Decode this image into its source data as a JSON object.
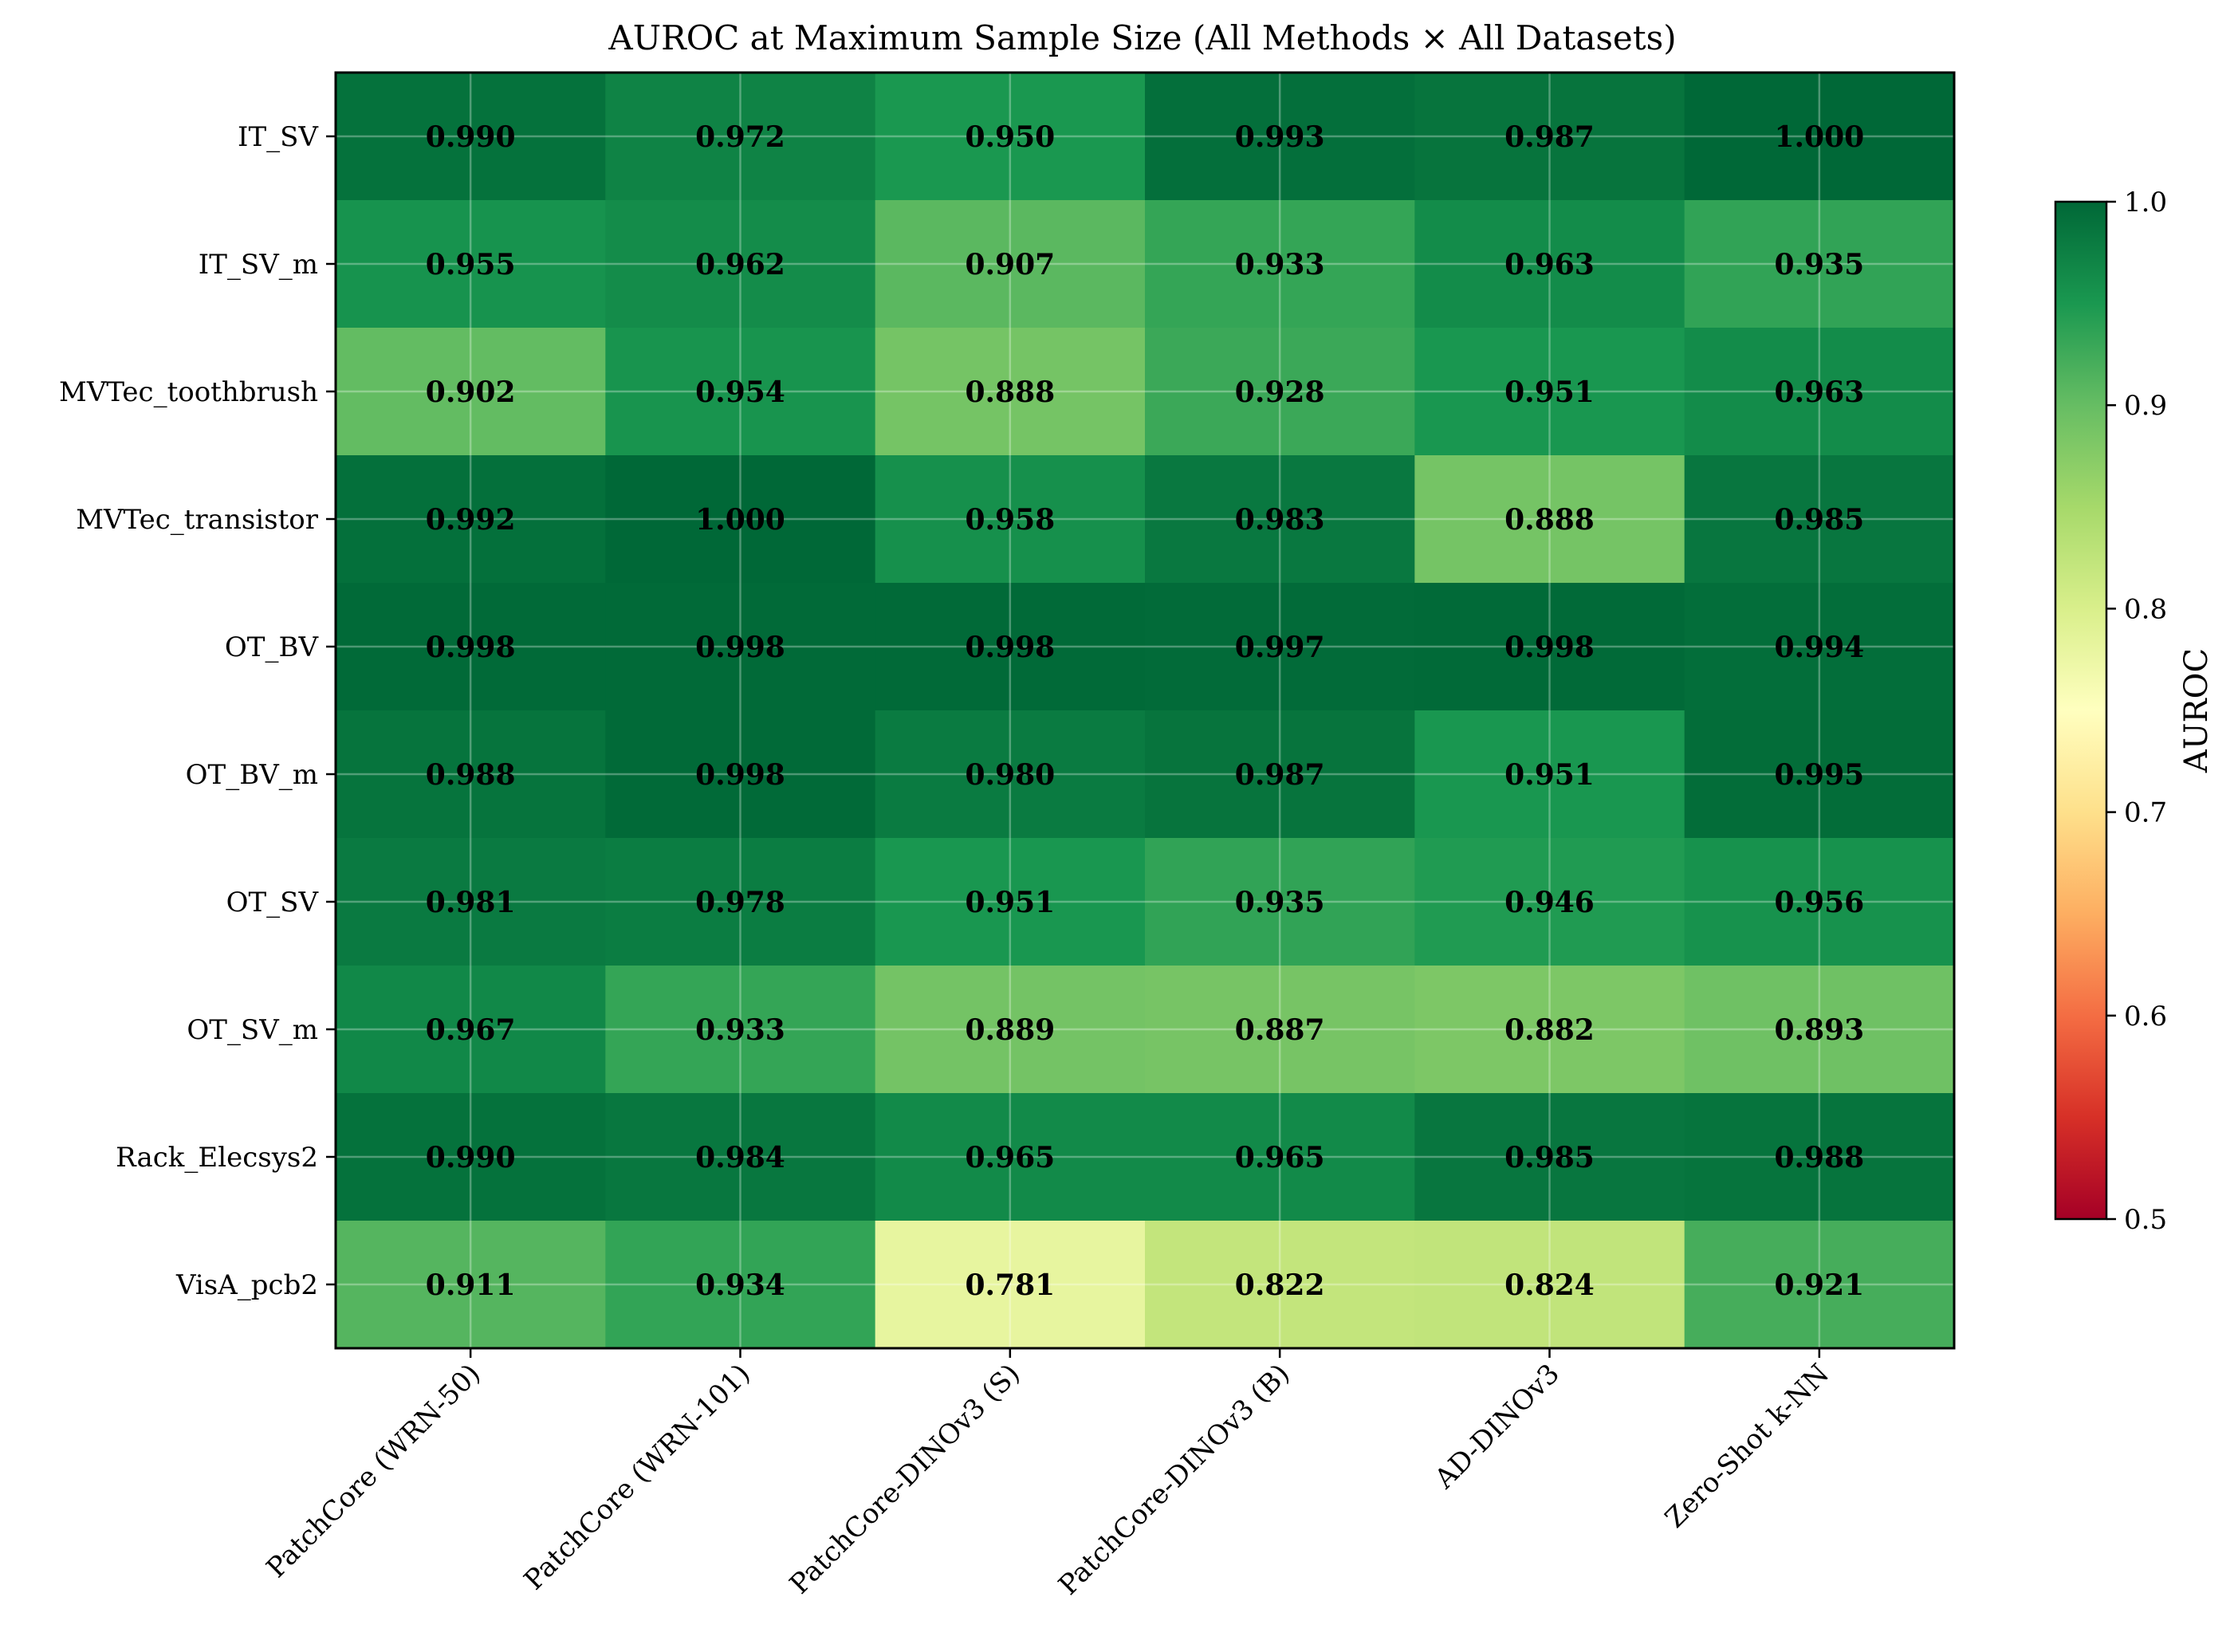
{
  "chart_data": {
    "type": "heatmap",
    "title": "AUROC at Maximum Sample Size (All Methods × All Datasets)",
    "xlabel": "",
    "ylabel": "",
    "x_categories": [
      "PatchCore (WRN-50)",
      "PatchCore (WRN-101)",
      "PatchCore-DINOv3 (S)",
      "PatchCore-DINOv3 (B)",
      "AD-DINOv3",
      "Zero-Shot k-NN"
    ],
    "y_categories": [
      "IT_SV",
      "IT_SV_m",
      "MVTec_toothbrush",
      "MVTec_transistor",
      "OT_BV",
      "OT_BV_m",
      "OT_SV",
      "OT_SV_m",
      "Rack_Elecsys2",
      "VisA_pcb2"
    ],
    "values": [
      [
        0.99,
        0.972,
        0.95,
        0.993,
        0.987,
        1.0
      ],
      [
        0.955,
        0.962,
        0.907,
        0.933,
        0.963,
        0.935
      ],
      [
        0.902,
        0.954,
        0.888,
        0.928,
        0.951,
        0.963
      ],
      [
        0.992,
        1.0,
        0.958,
        0.983,
        0.888,
        0.985
      ],
      [
        0.998,
        0.998,
        0.998,
        0.997,
        0.998,
        0.994
      ],
      [
        0.988,
        0.998,
        0.98,
        0.987,
        0.951,
        0.995
      ],
      [
        0.981,
        0.978,
        0.951,
        0.935,
        0.946,
        0.956
      ],
      [
        0.967,
        0.933,
        0.889,
        0.887,
        0.882,
        0.893
      ],
      [
        0.99,
        0.984,
        0.965,
        0.965,
        0.985,
        0.988
      ],
      [
        0.911,
        0.934,
        0.781,
        0.822,
        0.824,
        0.921
      ]
    ],
    "value_format": "0.000",
    "colormap": "RdYlGn",
    "vmin": 0.5,
    "vmax": 1.0,
    "colorbar": {
      "label": "AUROC",
      "ticks": [
        0.5,
        0.6,
        0.7,
        0.8,
        0.9,
        1.0
      ],
      "tick_labels": [
        "0.5",
        "0.6",
        "0.7",
        "0.8",
        "0.9",
        "1.0"
      ]
    },
    "grid": true
  }
}
